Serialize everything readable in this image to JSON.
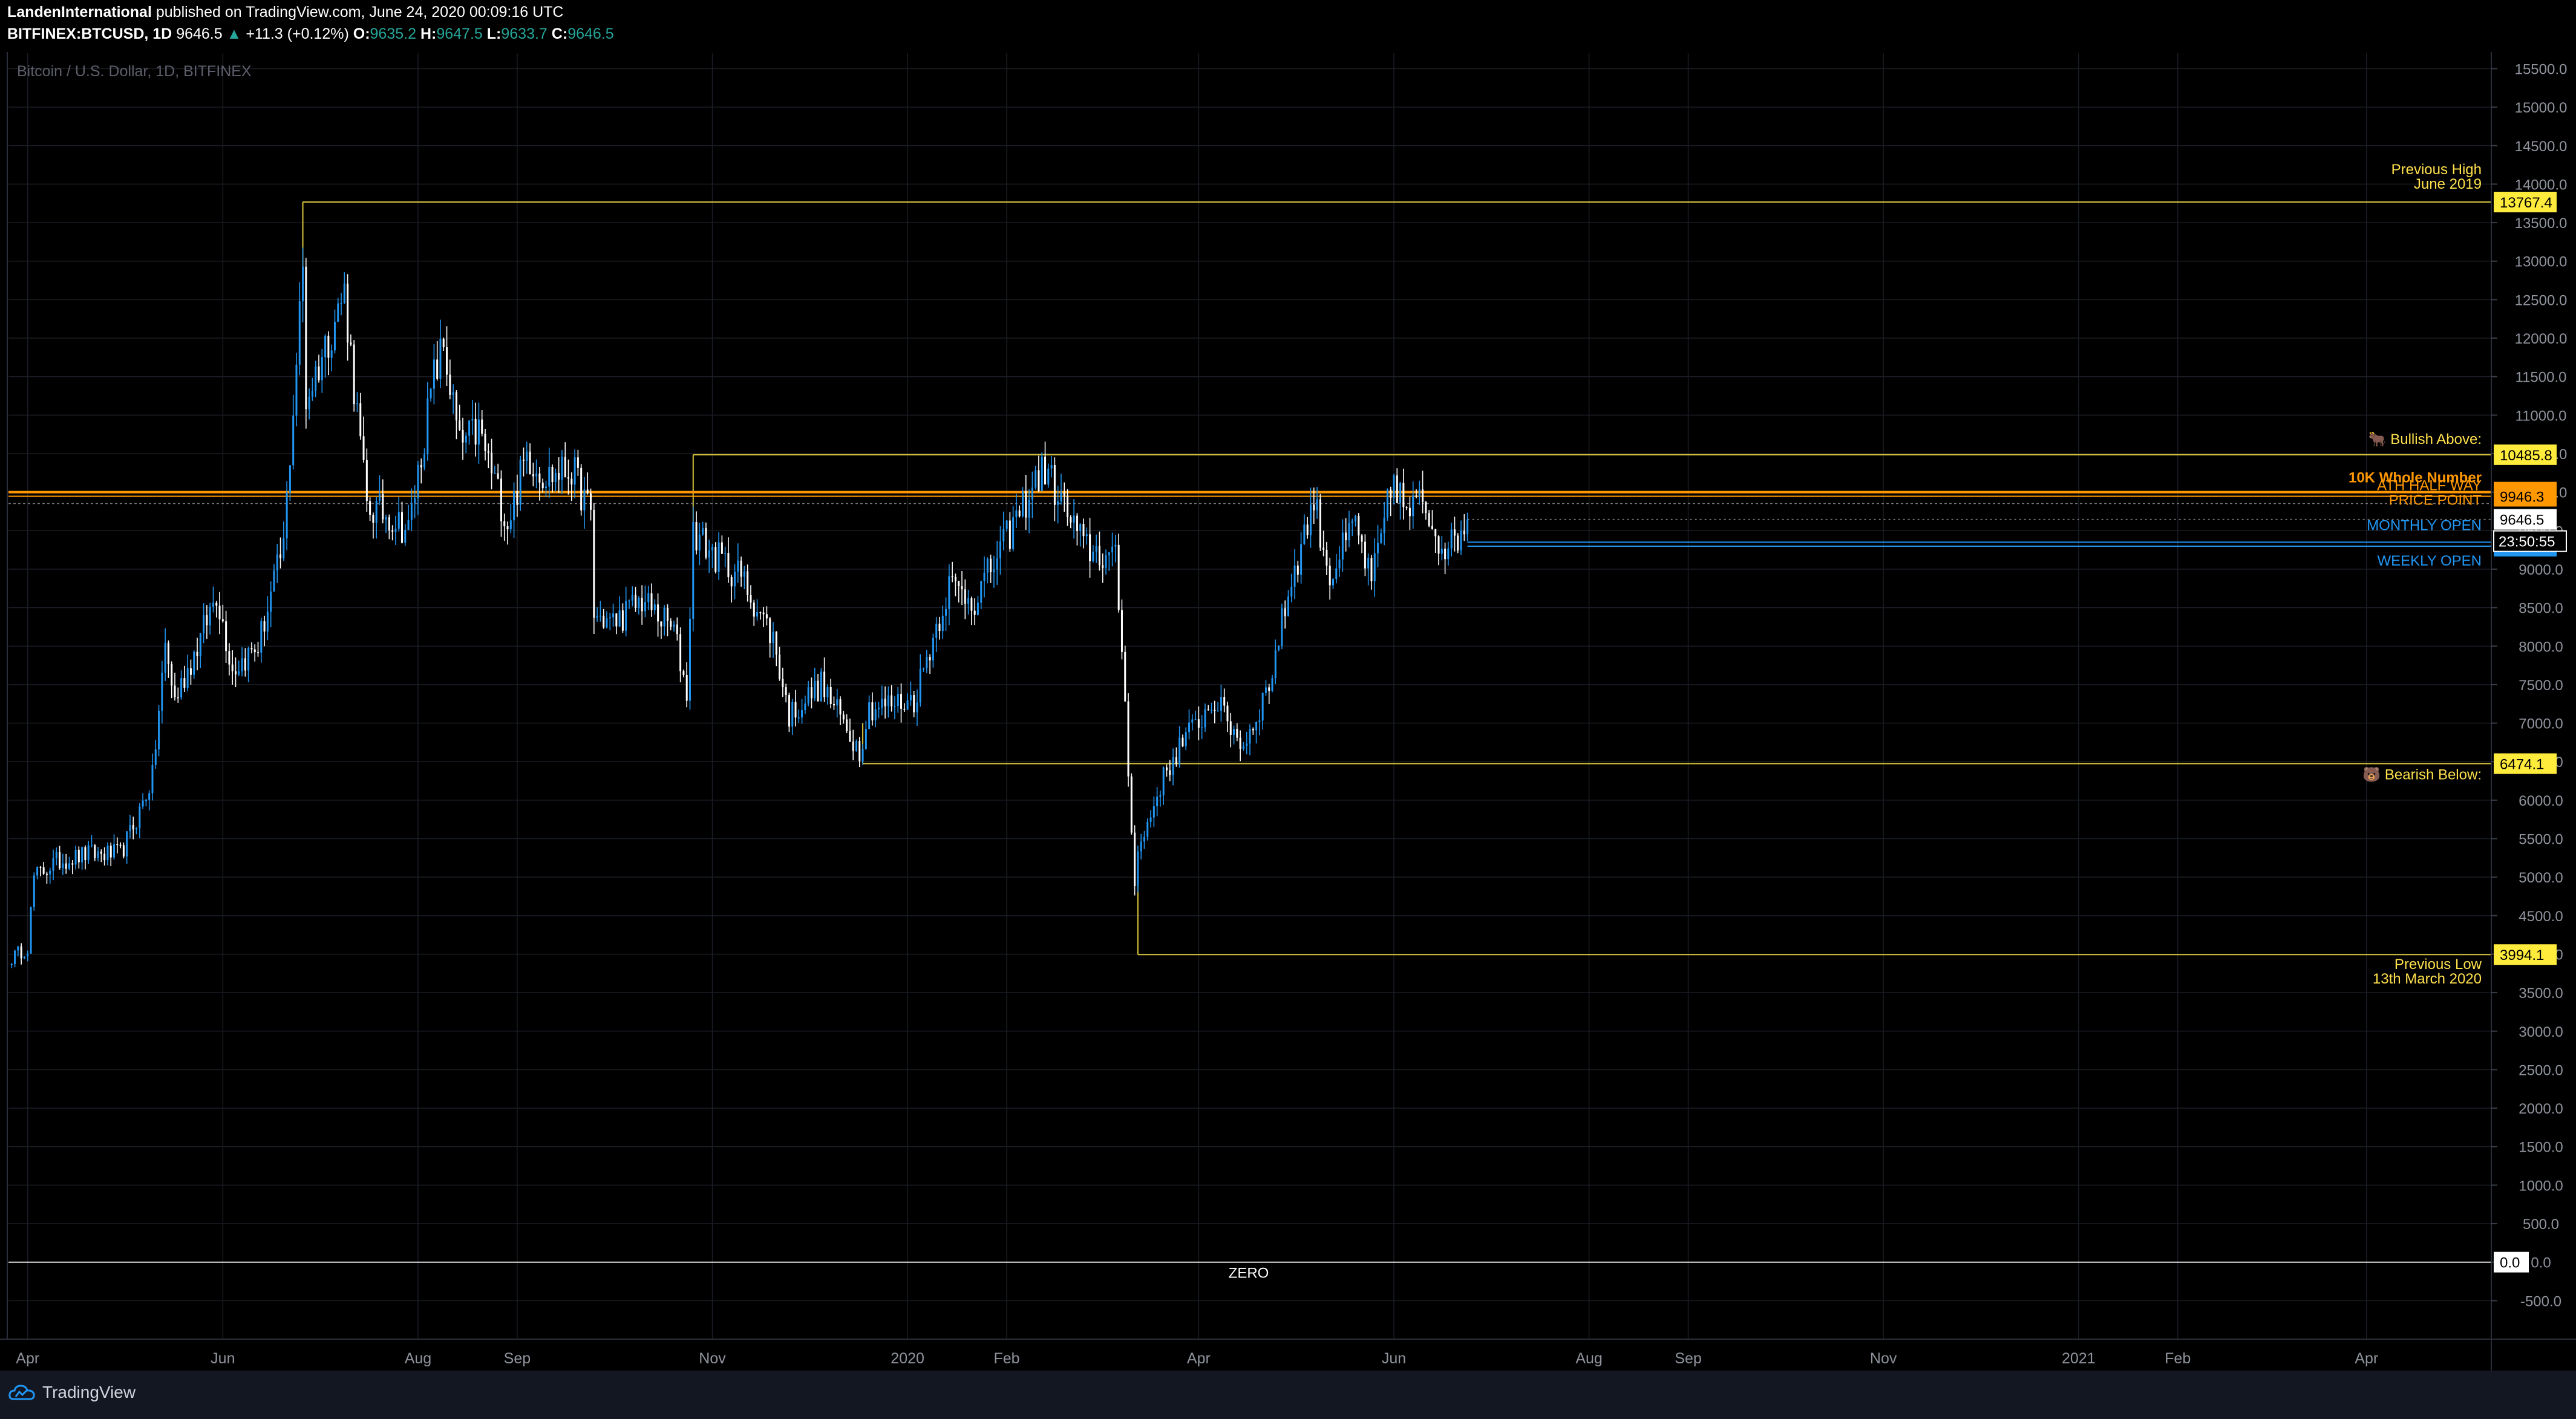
{
  "header": {
    "author": "LandenInternational",
    "published_text": "published on TradingView.com, June 24, 2020 00:09:16 UTC",
    "symbol": "BITFINEX:BTCUSD, 1D",
    "last": "9646.5",
    "change": "+11.3 (+0.12%)",
    "o_label": "O:",
    "o_value": "9635.2",
    "h_label": "H:",
    "h_value": "9647.5",
    "l_label": "L:",
    "l_value": "9633.7",
    "c_label": "C:",
    "c_value": "9646.5"
  },
  "footer": {
    "brand": "TradingView"
  },
  "colors": {
    "up": "#2196f3",
    "down": "#ffffff",
    "level_yellow": "#ffeb3b",
    "level_orange": "#ff9800",
    "level_blue": "#2196f3",
    "grid": "#1a1d24",
    "axis_text": "#8f939c"
  },
  "chart_data": {
    "type": "candlestick",
    "title": "Bitcoin / U.S. Dollar, 1D, BITFINEX",
    "ylim": [
      -1000,
      15700
    ],
    "yticks": [
      -500,
      0,
      500,
      1000,
      1500,
      2000,
      2500,
      3000,
      3500,
      4000,
      4500,
      5000,
      5500,
      6000,
      6500,
      7000,
      7500,
      8000,
      8500,
      9000,
      9500,
      10000,
      10500,
      11000,
      11500,
      12000,
      12500,
      13000,
      13500,
      14000,
      14500,
      15000,
      15500
    ],
    "ytick_labels": [
      "-500.0",
      "0.0",
      "500.0",
      "1000.0",
      "1500.0",
      "2000.0",
      "2500.0",
      "3000.0",
      "3500.0",
      "4000.0",
      "4500.0",
      "5000.0",
      "5500.0",
      "6000.0",
      "6500.0",
      "7000.0",
      "7500.0",
      "8000.0",
      "8500.0",
      "9000.0",
      "9500.0",
      "10000.0",
      "10500.0",
      "11000.0",
      "11500.0",
      "12000.0",
      "12500.0",
      "13000.0",
      "13500.0",
      "14000.0",
      "14500.0",
      "15000.0",
      "15500.0"
    ],
    "x_range": [
      "2019-03-26",
      "2021-05-10"
    ],
    "x_ticks": [
      {
        "date": "2019-04-01",
        "label": "Apr"
      },
      {
        "date": "2019-06-01",
        "label": "Jun"
      },
      {
        "date": "2019-08-01",
        "label": "Aug"
      },
      {
        "date": "2019-09-01",
        "label": "Sep"
      },
      {
        "date": "2019-11-01",
        "label": "Nov"
      },
      {
        "date": "2020-01-01",
        "label": "2020"
      },
      {
        "date": "2020-02-01",
        "label": "Feb"
      },
      {
        "date": "2020-04-01",
        "label": "Apr"
      },
      {
        "date": "2020-06-01",
        "label": "Jun"
      },
      {
        "date": "2020-08-01",
        "label": "Aug"
      },
      {
        "date": "2020-09-01",
        "label": "Sep"
      },
      {
        "date": "2020-11-01",
        "label": "Nov"
      },
      {
        "date": "2021-01-01",
        "label": "2021"
      },
      {
        "date": "2021-02-01",
        "label": "Feb"
      },
      {
        "date": "2021-04-01",
        "label": "Apr"
      }
    ],
    "price_path": [
      [
        "2019-03-27",
        3950
      ],
      [
        "2019-04-01",
        4100
      ],
      [
        "2019-04-03",
        5000
      ],
      [
        "2019-04-10",
        5200
      ],
      [
        "2019-04-20",
        5300
      ],
      [
        "2019-04-30",
        5300
      ],
      [
        "2019-05-05",
        5750
      ],
      [
        "2019-05-10",
        6300
      ],
      [
        "2019-05-14",
        8000
      ],
      [
        "2019-05-17",
        7300
      ],
      [
        "2019-05-25",
        8100
      ],
      [
        "2019-05-30",
        8700
      ],
      [
        "2019-06-04",
        7700
      ],
      [
        "2019-06-12",
        8000
      ],
      [
        "2019-06-20",
        9300
      ],
      [
        "2019-06-22",
        10500
      ],
      [
        "2019-06-26",
        12900
      ],
      [
        "2019-06-27",
        11200
      ],
      [
        "2019-07-03",
        11900
      ],
      [
        "2019-07-09",
        12600
      ],
      [
        "2019-07-16",
        9800
      ],
      [
        "2019-07-23",
        9700
      ],
      [
        "2019-07-29",
        9500
      ],
      [
        "2019-08-06",
        11500
      ],
      [
        "2019-08-09",
        11900
      ],
      [
        "2019-08-14",
        10600
      ],
      [
        "2019-08-20",
        10800
      ],
      [
        "2019-08-29",
        9600
      ],
      [
        "2019-09-04",
        10500
      ],
      [
        "2019-09-10",
        10200
      ],
      [
        "2019-09-18",
        10300
      ],
      [
        "2019-09-24",
        9700
      ],
      [
        "2019-09-25",
        8400
      ],
      [
        "2019-10-01",
        8300
      ],
      [
        "2019-10-10",
        8600
      ],
      [
        "2019-10-20",
        8200
      ],
      [
        "2019-10-24",
        7400
      ],
      [
        "2019-10-26",
        9500
      ],
      [
        "2019-11-01",
        9200
      ],
      [
        "2019-11-10",
        8900
      ],
      [
        "2019-11-20",
        8100
      ],
      [
        "2019-11-25",
        7100
      ],
      [
        "2019-12-05",
        7500
      ],
      [
        "2019-12-17",
        6650
      ],
      [
        "2019-12-20",
        7200
      ],
      [
        "2020-01-03",
        7300
      ],
      [
        "2020-01-14",
        8800
      ],
      [
        "2020-01-22",
        8600
      ],
      [
        "2020-02-01",
        9400
      ],
      [
        "2020-02-10",
        10150
      ],
      [
        "2020-02-13",
        10300
      ],
      [
        "2020-02-25",
        9300
      ],
      [
        "2020-03-06",
        9100
      ],
      [
        "2020-03-08",
        8000
      ],
      [
        "2020-03-12",
        4900
      ],
      [
        "2020-03-13",
        5300
      ],
      [
        "2020-03-20",
        6200
      ],
      [
        "2020-03-26",
        6700
      ],
      [
        "2020-04-06",
        7300
      ],
      [
        "2020-04-15",
        6700
      ],
      [
        "2020-04-23",
        7500
      ],
      [
        "2020-04-29",
        8700
      ],
      [
        "2020-05-07",
        9900
      ],
      [
        "2020-05-12",
        8900
      ],
      [
        "2020-05-20",
        9600
      ],
      [
        "2020-05-25",
        8800
      ],
      [
        "2020-06-01",
        10200
      ],
      [
        "2020-06-05",
        9700
      ],
      [
        "2020-06-10",
        9900
      ],
      [
        "2020-06-15",
        9400
      ],
      [
        "2020-06-19",
        9300
      ],
      [
        "2020-06-24",
        9646.5
      ]
    ],
    "levels": [
      {
        "name": "previous-high",
        "value": 13767.4,
        "label": "13767.4",
        "start": "2019-06-26",
        "color": "yellow",
        "text": [
          "Previous High",
          "June 2019"
        ]
      },
      {
        "name": "bullish-above",
        "value": 10485.8,
        "label": "10485.8",
        "start": "2019-10-26",
        "color": "yellow",
        "text": [
          "🐂 Bullish Above:"
        ]
      },
      {
        "name": "10k-whole-number",
        "value": 10000.0,
        "label": "10000.0",
        "start": "2019-03-26",
        "color": "orange",
        "text": [
          "10K Whole Number"
        ]
      },
      {
        "name": "ath-half-way",
        "value": 9946.3,
        "label": "9946.3",
        "start": "2019-03-26",
        "color": "orange",
        "text": [
          "ATH HALF WAY",
          "PRICE POINT"
        ]
      },
      {
        "name": "monthly-open",
        "value": 9349.8,
        "label": "9349.8",
        "start": "2020-06-24",
        "color": "blue",
        "text": [
          "MONTHLY OPEN"
        ]
      },
      {
        "name": "weekly-open",
        "value": 9297.8,
        "label": "9297.8",
        "start": "2020-06-24",
        "color": "blue",
        "text": [
          "WEEKLY OPEN"
        ]
      },
      {
        "name": "bearish-below",
        "value": 6474.1,
        "label": "6474.1",
        "start": "2019-12-18",
        "color": "yellow",
        "text": [
          "🐻 Bearish Below:"
        ]
      },
      {
        "name": "previous-low",
        "value": 3994.1,
        "label": "3994.1",
        "start": "2020-03-13",
        "color": "yellow",
        "text": [
          "Previous Low",
          "13th March 2020"
        ]
      },
      {
        "name": "zero",
        "value": 0.0,
        "label": "0.0",
        "start": "2019-03-26",
        "color": "white",
        "text": [
          "ZERO"
        ]
      }
    ],
    "current_price": {
      "value": 9646.5,
      "label": "9646.5",
      "countdown": "23:50:55"
    }
  }
}
